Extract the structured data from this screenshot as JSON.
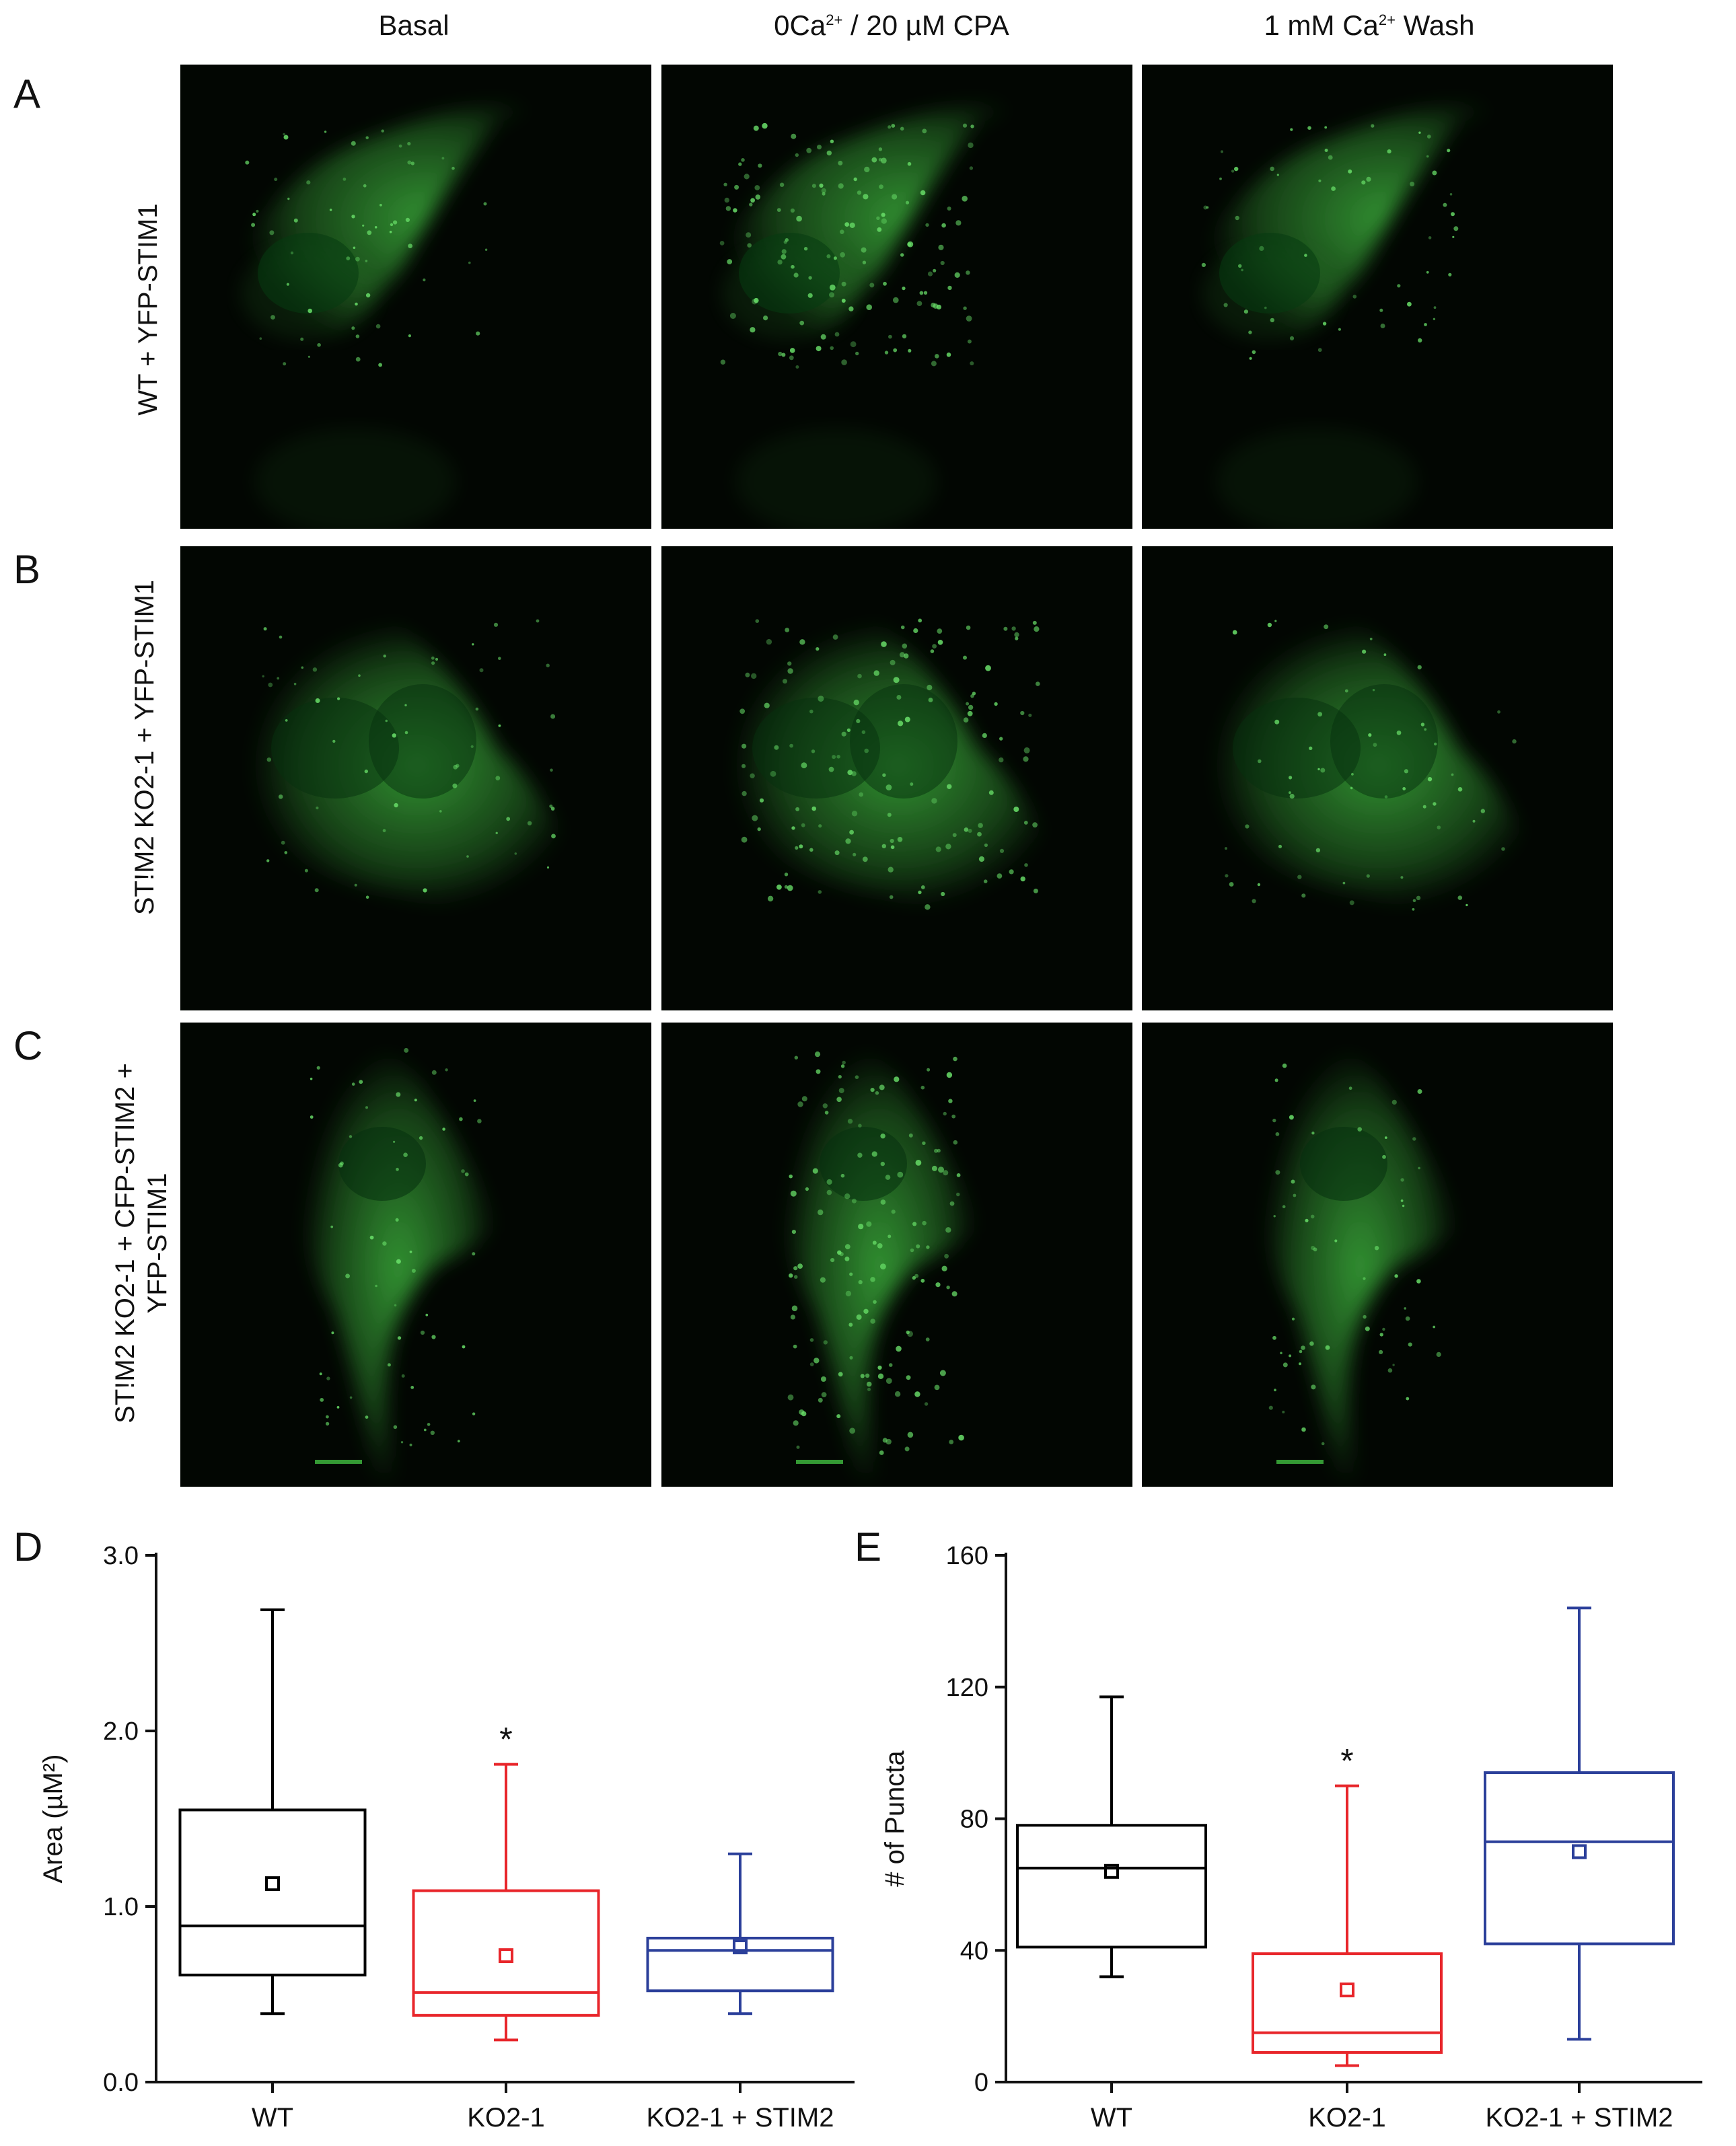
{
  "figure": {
    "column_headers": [
      {
        "main": "Basal",
        "sup": "",
        "tail": ""
      },
      {
        "main": "0Ca",
        "sup": "2+",
        "tail": " / 20 µM CPA"
      },
      {
        "main": "1 mM Ca",
        "sup": "2+",
        "tail": " Wash"
      }
    ],
    "panels": [
      {
        "letter": "A",
        "row_label_lines": [
          "WT + YFP-STIM1"
        ]
      },
      {
        "letter": "B",
        "row_label_lines": [
          "ST!M2 KO2-1 + YFP-STIM1"
        ]
      },
      {
        "letter": "C",
        "row_label_lines": [
          "ST!M2 KO2-1 + CFP-STIM2 +",
          "YFP-STIM1"
        ]
      }
    ],
    "chart_letters": [
      "D",
      "E"
    ],
    "colors": {
      "wt": "#000000",
      "ko": "#e8262b",
      "rescue": "#2b3f9a",
      "cell": "#3aaa3a",
      "background": "#020602"
    }
  },
  "chart_data": [
    {
      "type": "box",
      "ylabel": "Area (µM²)",
      "ylim": [
        0,
        3.0
      ],
      "yticks": [
        0.0,
        1.0,
        2.0,
        3.0
      ],
      "ytick_labels": [
        "0.0",
        "1.0",
        "2.0",
        "3.0"
      ],
      "categories": [
        "WT",
        "KO2-1",
        "KO2-1 + STIM2"
      ],
      "boxes": [
        {
          "name": "WT",
          "whisker_low": 0.39,
          "q1": 0.61,
          "median": 0.89,
          "q3": 1.55,
          "whisker_high": 2.69,
          "mean": 1.13,
          "color": "#000000",
          "annotation": ""
        },
        {
          "name": "KO2-1",
          "whisker_low": 0.24,
          "q1": 0.38,
          "median": 0.51,
          "q3": 1.09,
          "whisker_high": 1.81,
          "mean": 0.72,
          "color": "#e8262b",
          "annotation": "*"
        },
        {
          "name": "KO2-1 + STIM2",
          "whisker_low": 0.39,
          "q1": 0.52,
          "median": 0.75,
          "q3": 0.82,
          "whisker_high": 1.3,
          "mean": 0.77,
          "color": "#2b3f9a",
          "annotation": ""
        }
      ]
    },
    {
      "type": "box",
      "ylabel": "# of Puncta",
      "ylim": [
        0,
        160
      ],
      "yticks": [
        0,
        40,
        80,
        120,
        160
      ],
      "ytick_labels": [
        "0",
        "40",
        "80",
        "120",
        "160"
      ],
      "categories": [
        "WT",
        "KO2-1",
        "KO2-1 + STIM2"
      ],
      "boxes": [
        {
          "name": "WT",
          "whisker_low": 32,
          "q1": 41,
          "median": 65,
          "q3": 78,
          "whisker_high": 117,
          "mean": 64,
          "color": "#000000",
          "annotation": ""
        },
        {
          "name": "KO2-1",
          "whisker_low": 5,
          "q1": 9,
          "median": 15,
          "q3": 39,
          "whisker_high": 90,
          "mean": 28,
          "color": "#e8262b",
          "annotation": "*"
        },
        {
          "name": "KO2-1 + STIM2",
          "whisker_low": 13,
          "q1": 42,
          "median": 73,
          "q3": 94,
          "whisker_high": 144,
          "mean": 70,
          "color": "#2b3f9a",
          "annotation": ""
        }
      ]
    }
  ]
}
